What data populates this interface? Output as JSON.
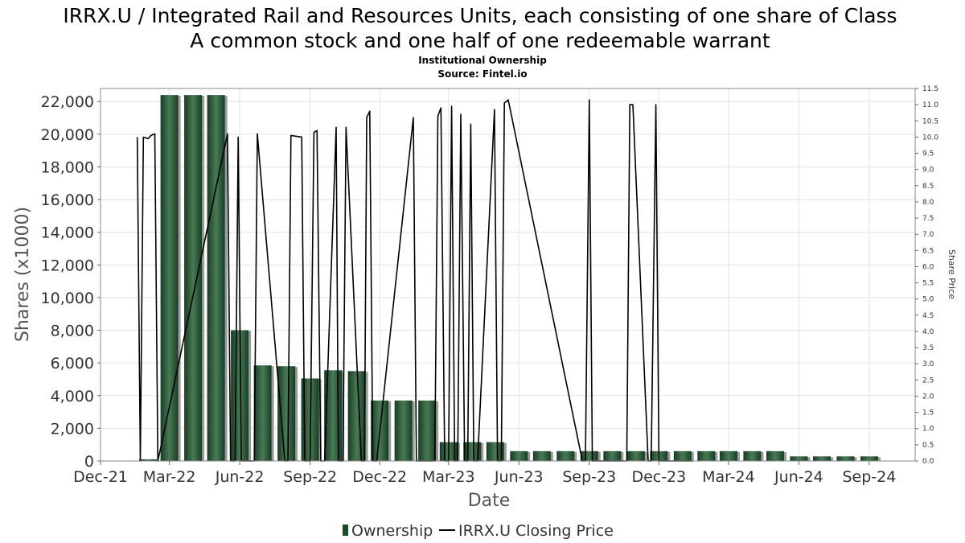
{
  "chart_data": {
    "type": "bar",
    "title": "IRRX.U / Integrated Rail and Resources Units, each consisting of one share of Class A common stock and one half of one redeemable warrant",
    "title_lines": [
      "IRRX.U / Integrated Rail and Resources Units, each consisting of one share of Class",
      "A common stock and one half of one redeemable warrant"
    ],
    "subtitle": "Institutional Ownership",
    "source": "Source: Fintel.io",
    "xlabel": "Date",
    "ylabel": "Shares (x1000)",
    "y2label": "Share Price",
    "xlim": [
      "2021-12-01",
      "2024-10-31"
    ],
    "ylim": [
      0,
      22800
    ],
    "y2lim": [
      0,
      11.5
    ],
    "grid": true,
    "legend_position": "bottom",
    "x_ticks": [
      "Dec-21",
      "Mar-22",
      "Jun-22",
      "Sep-22",
      "Dec-22",
      "Mar-23",
      "Jun-23",
      "Sep-23",
      "Dec-23",
      "Mar-24",
      "Jun-24",
      "Sep-24"
    ],
    "x_tick_dates": [
      "2021-12-01",
      "2022-03-01",
      "2022-06-01",
      "2022-09-01",
      "2022-12-01",
      "2023-03-01",
      "2023-06-01",
      "2023-09-01",
      "2023-12-01",
      "2024-03-01",
      "2024-06-01",
      "2024-09-01"
    ],
    "y_ticks": [
      0,
      2000,
      4000,
      6000,
      8000,
      10000,
      12000,
      14000,
      16000,
      18000,
      20000,
      22000
    ],
    "y_tick_labels": [
      "0",
      "2,000",
      "4,000",
      "6,000",
      "8,000",
      "10,000",
      "12,000",
      "14,000",
      "16,000",
      "18,000",
      "20,000",
      "22,000"
    ],
    "y2_ticks": [
      0,
      0.5,
      1,
      1.5,
      2,
      2.5,
      3,
      3.5,
      4,
      4.5,
      5,
      5.5,
      6,
      6.5,
      7,
      7.5,
      8,
      8.5,
      9,
      9.5,
      10,
      10.5,
      11,
      11.5
    ],
    "y2_tick_labels": [
      "0.0",
      "0.5",
      "1.0",
      "1.5",
      "2.0",
      "2.5",
      "3.0",
      "3.5",
      "4.0",
      "4.5",
      "5.0",
      "5.5",
      "6.0",
      "6.5",
      "7.0",
      "7.5",
      "8.0",
      "8.5",
      "9.0",
      "9.5",
      "10.0",
      "10.5",
      "11.0",
      "11.5"
    ],
    "series": [
      {
        "name": "Ownership",
        "type": "bar",
        "color": "#1e4a2c",
        "x": [
          "2022-02-01",
          "2022-03-01",
          "2022-04-01",
          "2022-05-01",
          "2022-06-01",
          "2022-07-01",
          "2022-08-01",
          "2022-09-01",
          "2022-10-01",
          "2022-11-01",
          "2022-12-01",
          "2023-01-01",
          "2023-02-01",
          "2023-03-01",
          "2023-04-01",
          "2023-05-01",
          "2023-06-01",
          "2023-07-01",
          "2023-08-01",
          "2023-09-01",
          "2023-10-01",
          "2023-11-01",
          "2023-12-01",
          "2024-01-01",
          "2024-02-01",
          "2024-03-01",
          "2024-04-01",
          "2024-05-01",
          "2024-06-01",
          "2024-07-01",
          "2024-08-01",
          "2024-09-01"
        ],
        "values": [
          100,
          22400,
          22400,
          22400,
          8000,
          5850,
          5800,
          5050,
          5550,
          5500,
          3700,
          3700,
          3700,
          1150,
          1150,
          1150,
          600,
          600,
          600,
          600,
          600,
          600,
          600,
          600,
          600,
          600,
          600,
          600,
          280,
          280,
          280,
          280
        ]
      },
      {
        "name": "IRRX.U Closing Price",
        "type": "line",
        "color": "#000000",
        "x": [
          "2022-01-18",
          "2022-01-22",
          "2022-01-26",
          "2022-02-01",
          "2022-02-05",
          "2022-02-10",
          "2022-02-14",
          "2022-05-16",
          "2022-05-20",
          "2022-05-26",
          "2022-05-30",
          "2022-06-03",
          "2022-06-08",
          "2022-06-20",
          "2022-06-24",
          "2022-07-30",
          "2022-08-03",
          "2022-08-07",
          "2022-08-21",
          "2022-08-25",
          "2022-09-01",
          "2022-09-06",
          "2022-09-10",
          "2022-09-15",
          "2022-09-20",
          "2022-10-05",
          "2022-10-08",
          "2022-10-14",
          "2022-10-18",
          "2022-11-07",
          "2022-11-11",
          "2022-11-14",
          "2022-11-18",
          "2022-11-22",
          "2022-11-27",
          "2023-01-14",
          "2023-01-18",
          "2023-02-11",
          "2023-02-15",
          "2023-02-19",
          "2023-02-24",
          "2023-03-01",
          "2023-03-05",
          "2023-03-09",
          "2023-03-13",
          "2023-03-17",
          "2023-03-22",
          "2023-03-26",
          "2023-03-30",
          "2023-04-03",
          "2023-04-08",
          "2023-04-30",
          "2023-05-04",
          "2023-05-09",
          "2023-05-13",
          "2023-05-18",
          "2023-08-23",
          "2023-08-27",
          "2023-09-01",
          "2023-09-05",
          "2023-10-20",
          "2023-10-24",
          "2023-10-28",
          "2023-11-17",
          "2023-11-21",
          "2023-11-27",
          "2023-12-01",
          "2024-01-06",
          "2024-01-10",
          "2024-01-14"
        ],
        "values": [
          10.0,
          0.0,
          10.0,
          9.95,
          10.05,
          10.1,
          0.0,
          10.1,
          0.0,
          0.0,
          10.0,
          0.0,
          0.0,
          0.0,
          10.1,
          0.0,
          0.0,
          10.05,
          10.0,
          0.0,
          0.0,
          10.15,
          10.2,
          0.0,
          0.0,
          10.3,
          0.0,
          0.0,
          10.3,
          0.0,
          0.0,
          10.6,
          10.8,
          0.0,
          0.0,
          10.6,
          0.0,
          0.0,
          10.65,
          10.9,
          0.0,
          0.0,
          10.95,
          0.0,
          0.0,
          10.7,
          0.0,
          0.0,
          10.4,
          0.0,
          0.0,
          10.85,
          0.0,
          0.0,
          11.05,
          11.15,
          0.0,
          0.0,
          11.15,
          0.0,
          0.0,
          11.0,
          11.0,
          0.0,
          0.0,
          11.0,
          0.0,
          0.0,
          0.0,
          0.0
        ]
      }
    ]
  }
}
